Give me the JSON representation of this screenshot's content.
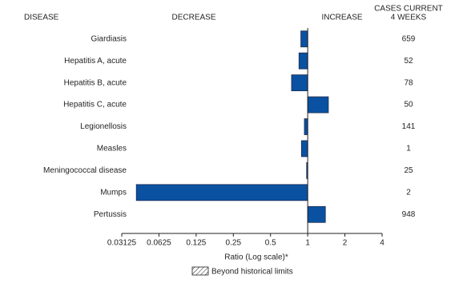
{
  "chart_data": {
    "type": "bar",
    "orientation": "horizontal",
    "log_scale": true,
    "log_base": 2,
    "headers": {
      "disease": "DISEASE",
      "decrease": "DECREASE",
      "increase": "INCREASE",
      "cases": [
        "CASES CURRENT",
        "4 WEEKS"
      ]
    },
    "categories": [
      "Giardiasis",
      "Hepatitis A, acute",
      "Hepatitis B, acute",
      "Hepatitis C, acute",
      "Legionellosis",
      "Measles",
      "Meningococcal disease",
      "Mumps",
      "Pertussis"
    ],
    "values": [
      0.88,
      0.85,
      0.74,
      1.47,
      0.94,
      0.89,
      0.98,
      0.041,
      1.39
    ],
    "cases": [
      659,
      52,
      78,
      50,
      141,
      1,
      25,
      2,
      948
    ],
    "color": "#0a51a1",
    "baseline": 1,
    "xlim": [
      0.03125,
      4
    ],
    "xticks": [
      0.03125,
      0.0625,
      0.125,
      0.25,
      0.5,
      1,
      2,
      4
    ],
    "xlabel": "Ratio (Log scale)*",
    "legend": "Beyond historical limits"
  }
}
